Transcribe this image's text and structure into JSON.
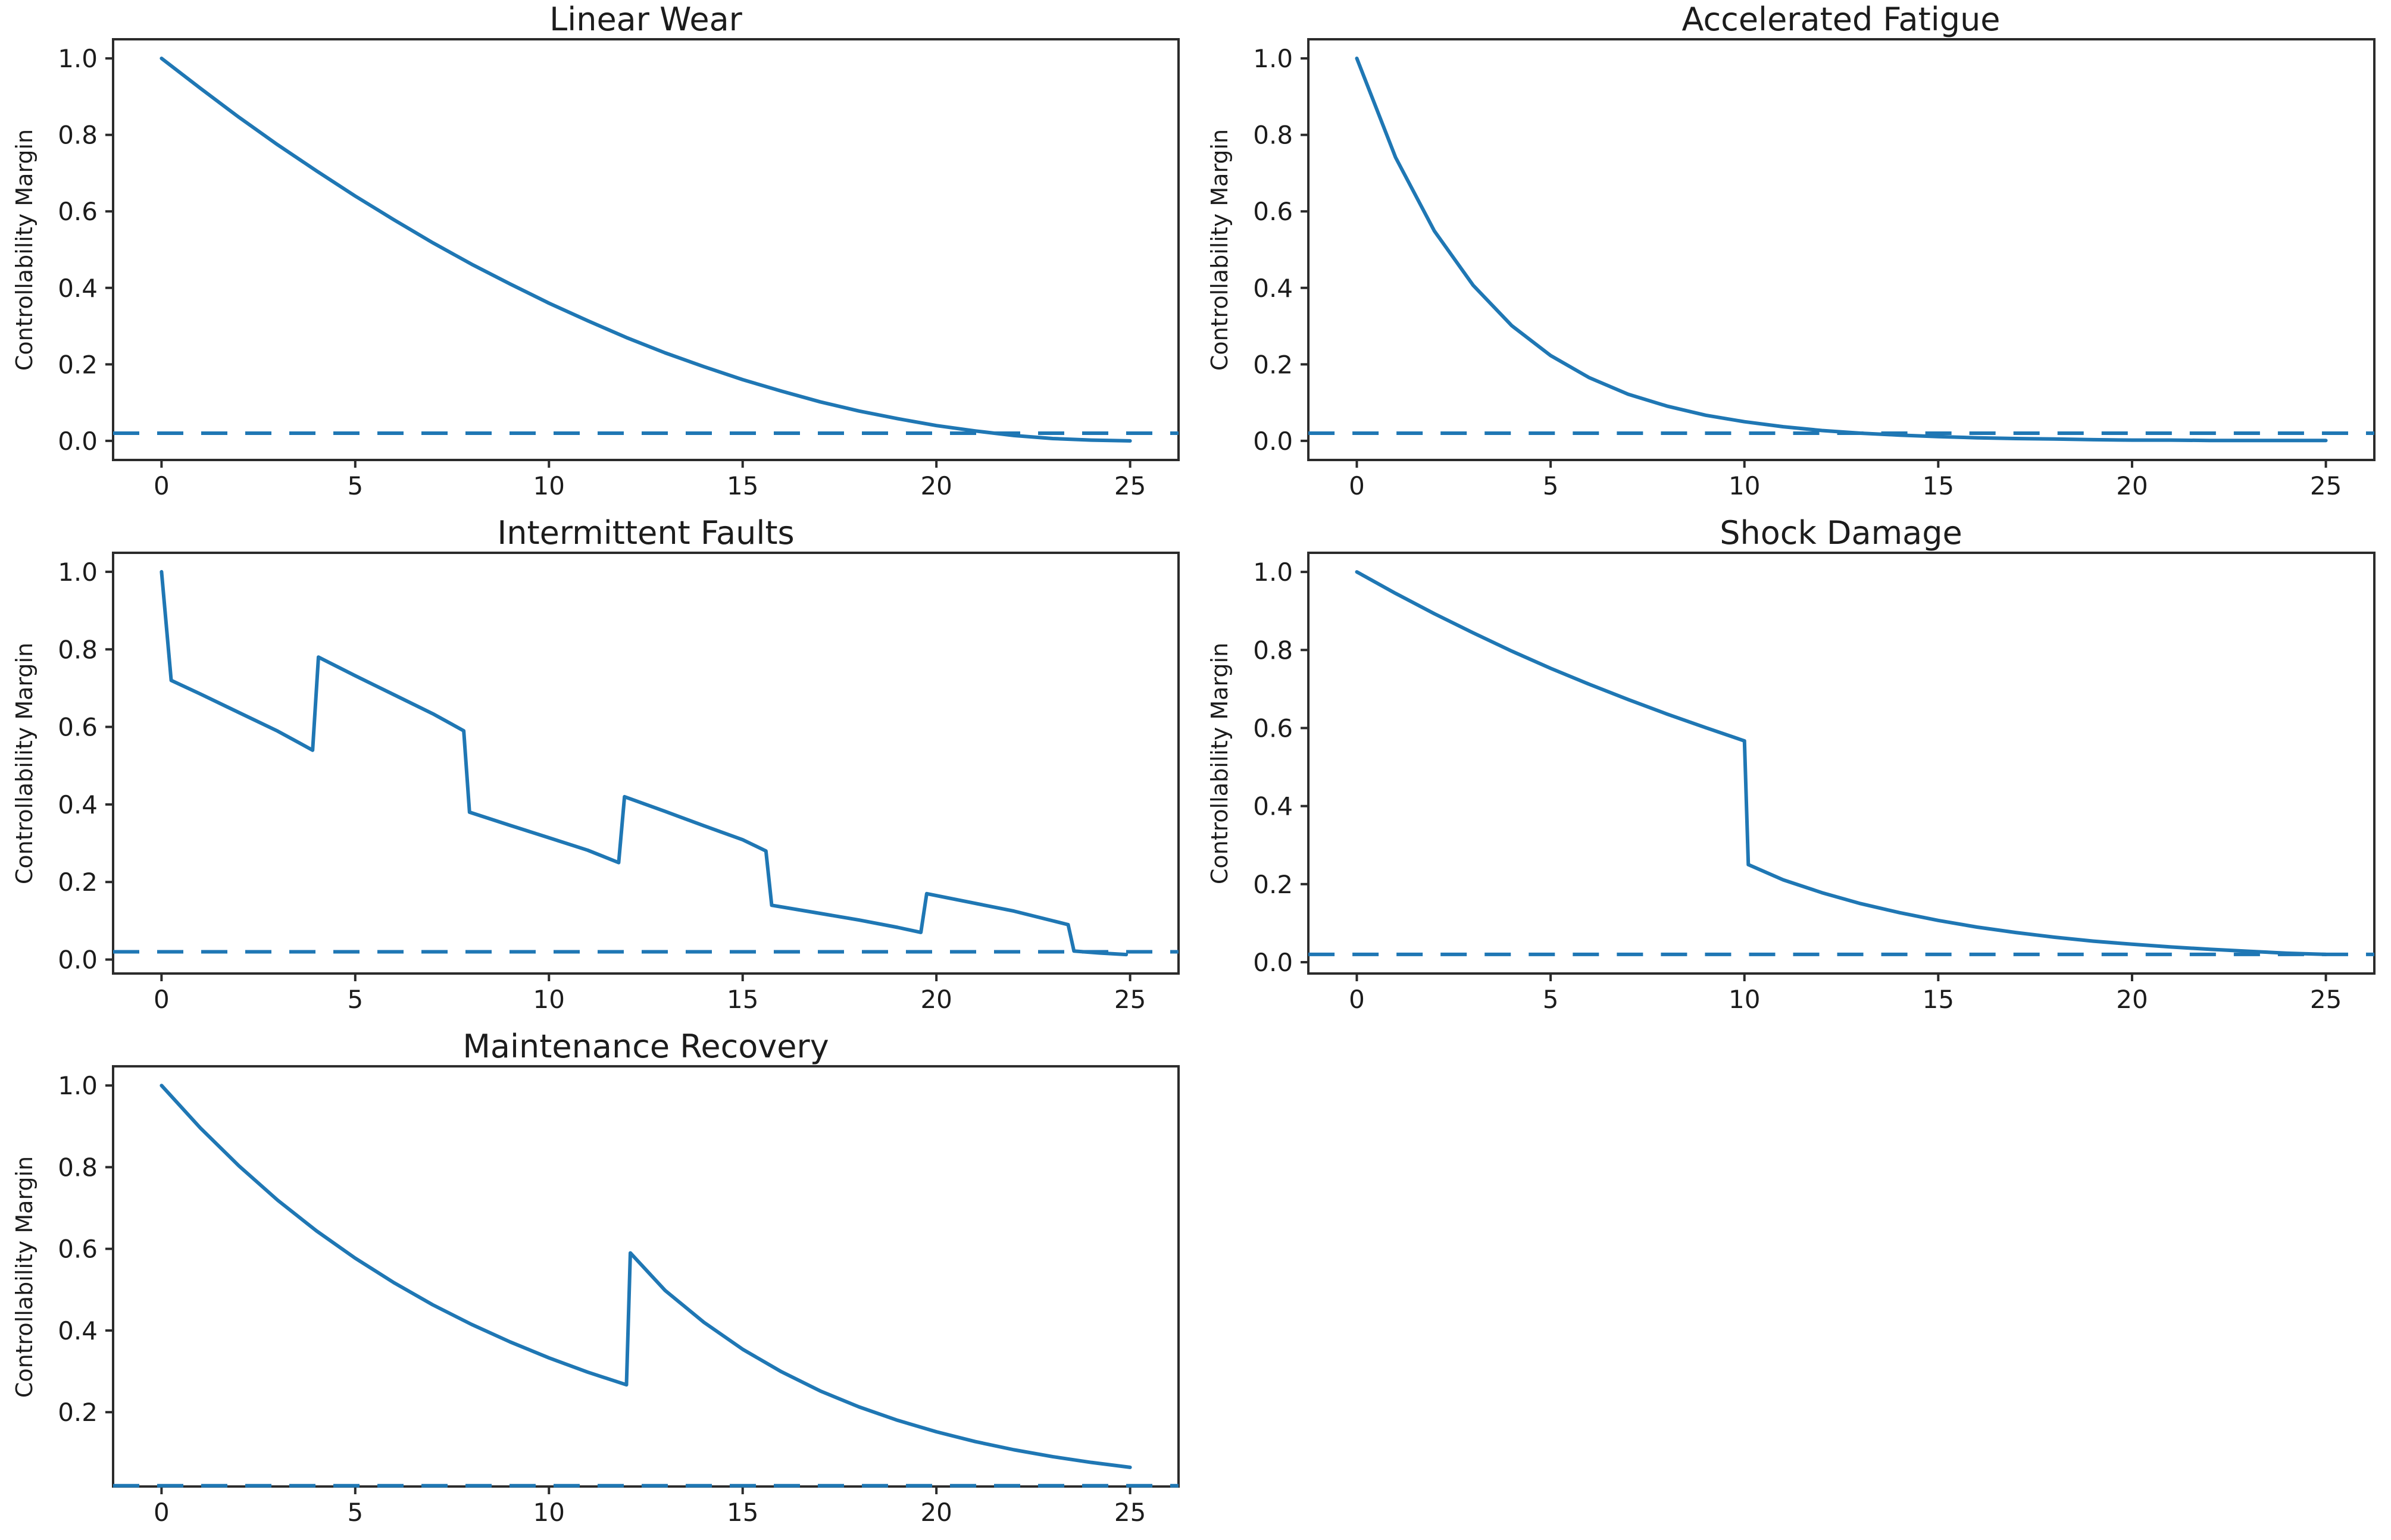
{
  "figure": {
    "background": "#ffffff",
    "accent_color": "#1f77b4",
    "spine_color": "#2b2b2b",
    "text_color": "#1c1c1c"
  },
  "chart_data": [
    {
      "type": "line",
      "title": "Linear Wear",
      "ylabel": "Controllability Margin",
      "xlabel": "",
      "xlim": [
        -1.25,
        26.25
      ],
      "ylim": [
        -0.05,
        1.05
      ],
      "xticks": [
        0,
        5,
        10,
        15,
        20,
        25
      ],
      "xtick_labels": [
        "0",
        "5",
        "10",
        "15",
        "20",
        "25"
      ],
      "yticks": [
        0.0,
        0.2,
        0.4,
        0.6,
        0.8,
        1.0
      ],
      "ytick_labels": [
        "0.0",
        "0.2",
        "0.4",
        "0.6",
        "0.8",
        "1.0"
      ],
      "grid": false,
      "legend": null,
      "threshold_line": {
        "y": 0.02,
        "style": "dashed",
        "color": "#1f77b4"
      },
      "series": [
        {
          "name": "controllability_margin",
          "color": "#1f77b4",
          "x": [
            0,
            1,
            2,
            3,
            4,
            5,
            6,
            7,
            8,
            9,
            10,
            11,
            12,
            13,
            14,
            15,
            16,
            17,
            18,
            19,
            20,
            21,
            22,
            23,
            24,
            25
          ],
          "y": [
            1.0,
            0.922,
            0.846,
            0.774,
            0.706,
            0.64,
            0.578,
            0.518,
            0.462,
            0.41,
            0.36,
            0.314,
            0.27,
            0.23,
            0.194,
            0.16,
            0.13,
            0.102,
            0.078,
            0.058,
            0.04,
            0.026,
            0.014,
            0.006,
            0.002,
            0.0
          ]
        }
      ]
    },
    {
      "type": "line",
      "title": "Accelerated Fatigue",
      "ylabel": "Controllability Margin",
      "xlabel": "",
      "xlim": [
        -1.25,
        26.25
      ],
      "ylim": [
        -0.05,
        1.05
      ],
      "xticks": [
        0,
        5,
        10,
        15,
        20,
        25
      ],
      "xtick_labels": [
        "0",
        "5",
        "10",
        "15",
        "20",
        "25"
      ],
      "yticks": [
        0.0,
        0.2,
        0.4,
        0.6,
        0.8,
        1.0
      ],
      "ytick_labels": [
        "0.0",
        "0.2",
        "0.4",
        "0.6",
        "0.8",
        "1.0"
      ],
      "grid": false,
      "legend": null,
      "threshold_line": {
        "y": 0.02,
        "style": "dashed",
        "color": "#1f77b4"
      },
      "series": [
        {
          "name": "controllability_margin",
          "color": "#1f77b4",
          "x": [
            0,
            1,
            2,
            3,
            4,
            5,
            6,
            7,
            8,
            9,
            10,
            11,
            12,
            13,
            14,
            15,
            16,
            17,
            18,
            19,
            20,
            21,
            22,
            23,
            24,
            25
          ],
          "y": [
            1.0,
            0.741,
            0.549,
            0.407,
            0.301,
            0.223,
            0.165,
            0.122,
            0.091,
            0.067,
            0.05,
            0.037,
            0.027,
            0.02,
            0.015,
            0.011,
            0.008,
            0.006,
            0.005,
            0.003,
            0.002,
            0.002,
            0.001,
            0.001,
            0.001,
            0.001
          ]
        }
      ]
    },
    {
      "type": "line",
      "title": "Intermittent Faults",
      "ylabel": "Controllability Margin",
      "xlabel": "",
      "xlim": [
        -1.25,
        26.25
      ],
      "ylim": [
        -0.036,
        1.049
      ],
      "xticks": [
        0,
        5,
        10,
        15,
        20,
        25
      ],
      "xtick_labels": [
        "0",
        "5",
        "10",
        "15",
        "20",
        "25"
      ],
      "yticks": [
        0.0,
        0.2,
        0.4,
        0.6,
        0.8,
        1.0
      ],
      "ytick_labels": [
        "0.0",
        "0.2",
        "0.4",
        "0.6",
        "0.8",
        "1.0"
      ],
      "grid": false,
      "legend": null,
      "threshold_line": {
        "y": 0.02,
        "style": "dashed",
        "color": "#1f77b4"
      },
      "series": [
        {
          "name": "controllability_margin",
          "color": "#1f77b4",
          "x": [
            0,
            0.25,
            1,
            2,
            3,
            3.9,
            4.05,
            5,
            6,
            7,
            7.8,
            7.95,
            9,
            10,
            11,
            11.8,
            11.95,
            13,
            14,
            15,
            15.6,
            15.75,
            17,
            18,
            19,
            19.6,
            19.75,
            21,
            22,
            23,
            23.4,
            23.55,
            24.2,
            24.9
          ],
          "y": [
            1.0,
            0.72,
            0.685,
            0.637,
            0.589,
            0.54,
            0.78,
            0.732,
            0.683,
            0.634,
            0.59,
            0.38,
            0.346,
            0.314,
            0.282,
            0.25,
            0.42,
            0.382,
            0.345,
            0.309,
            0.28,
            0.14,
            0.119,
            0.102,
            0.083,
            0.07,
            0.17,
            0.145,
            0.125,
            0.1,
            0.09,
            0.022,
            0.017,
            0.013
          ]
        }
      ]
    },
    {
      "type": "line",
      "title": "Shock Damage",
      "ylabel": "Controllability Margin",
      "xlabel": "",
      "xlim": [
        -1.25,
        26.25
      ],
      "ylim": [
        -0.029,
        1.049
      ],
      "xticks": [
        0,
        5,
        10,
        15,
        20,
        25
      ],
      "xtick_labels": [
        "0",
        "5",
        "10",
        "15",
        "20",
        "25"
      ],
      "yticks": [
        0.0,
        0.2,
        0.4,
        0.6,
        0.8,
        1.0
      ],
      "ytick_labels": [
        "0.0",
        "0.2",
        "0.4",
        "0.6",
        "0.8",
        "1.0"
      ],
      "grid": false,
      "legend": null,
      "threshold_line": {
        "y": 0.02,
        "style": "dashed",
        "color": "#1f77b4"
      },
      "series": [
        {
          "name": "controllability_margin",
          "color": "#1f77b4",
          "x": [
            0,
            1,
            2,
            3,
            4,
            5,
            6,
            7,
            8,
            9,
            10,
            10.1,
            11,
            12,
            13,
            14,
            15,
            16,
            17,
            18,
            19,
            20,
            21,
            22,
            23,
            24,
            25
          ],
          "y": [
            1.0,
            0.945,
            0.893,
            0.844,
            0.797,
            0.753,
            0.712,
            0.673,
            0.636,
            0.601,
            0.567,
            0.25,
            0.211,
            0.178,
            0.15,
            0.127,
            0.107,
            0.09,
            0.076,
            0.064,
            0.054,
            0.046,
            0.039,
            0.033,
            0.028,
            0.023,
            0.02
          ]
        }
      ]
    },
    {
      "type": "line",
      "title": "Maintenance Recovery",
      "ylabel": "Controllability Margin",
      "xlabel": "",
      "xlim": [
        -1.25,
        26.25
      ],
      "ylim": [
        0.018,
        1.047
      ],
      "xticks": [
        0,
        5,
        10,
        15,
        20,
        25
      ],
      "xtick_labels": [
        "0",
        "5",
        "10",
        "15",
        "20",
        "25"
      ],
      "yticks": [
        0.2,
        0.4,
        0.6,
        0.8,
        1.0
      ],
      "ytick_labels": [
        "0.2",
        "0.4",
        "0.6",
        "0.8",
        "1.0"
      ],
      "grid": false,
      "legend": null,
      "threshold_line": {
        "y": 0.02,
        "style": "dashed",
        "color": "#1f77b4"
      },
      "series": [
        {
          "name": "controllability_margin",
          "color": "#1f77b4",
          "x": [
            0,
            1,
            2,
            3,
            4,
            5,
            6,
            7,
            8,
            9,
            10,
            11,
            12,
            12.1,
            13,
            14,
            15,
            16,
            17,
            18,
            19,
            20,
            21,
            22,
            23,
            24,
            25
          ],
          "y": [
            1.0,
            0.896,
            0.803,
            0.719,
            0.644,
            0.577,
            0.517,
            0.463,
            0.415,
            0.372,
            0.333,
            0.298,
            0.267,
            0.59,
            0.498,
            0.42,
            0.354,
            0.299,
            0.252,
            0.213,
            0.18,
            0.152,
            0.128,
            0.108,
            0.091,
            0.077,
            0.065
          ]
        }
      ]
    }
  ]
}
